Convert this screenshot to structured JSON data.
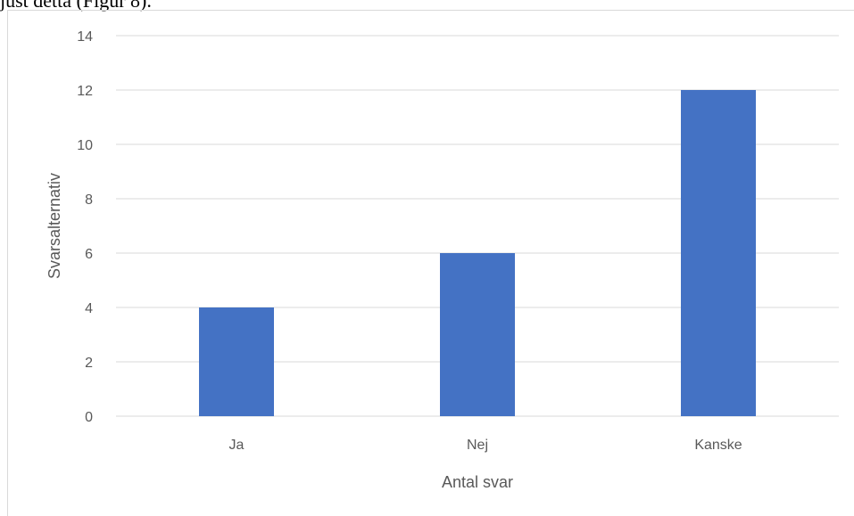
{
  "page": {
    "text_above_chart": "just detta (Figur 8)."
  },
  "chart_data": {
    "type": "bar",
    "title": "",
    "xlabel": "Antal svar",
    "ylabel": "Svarsalternativ",
    "categories": [
      "Ja",
      "Nej",
      "Kanske"
    ],
    "values": [
      4,
      6,
      12
    ],
    "ylim": [
      0,
      14
    ],
    "yticks": [
      0,
      2,
      4,
      6,
      8,
      10,
      12,
      14
    ],
    "grid": true,
    "legend": "none",
    "colors": {
      "bar": "#4472c4",
      "grid": "#d9d9d9",
      "text": "#595959"
    }
  }
}
